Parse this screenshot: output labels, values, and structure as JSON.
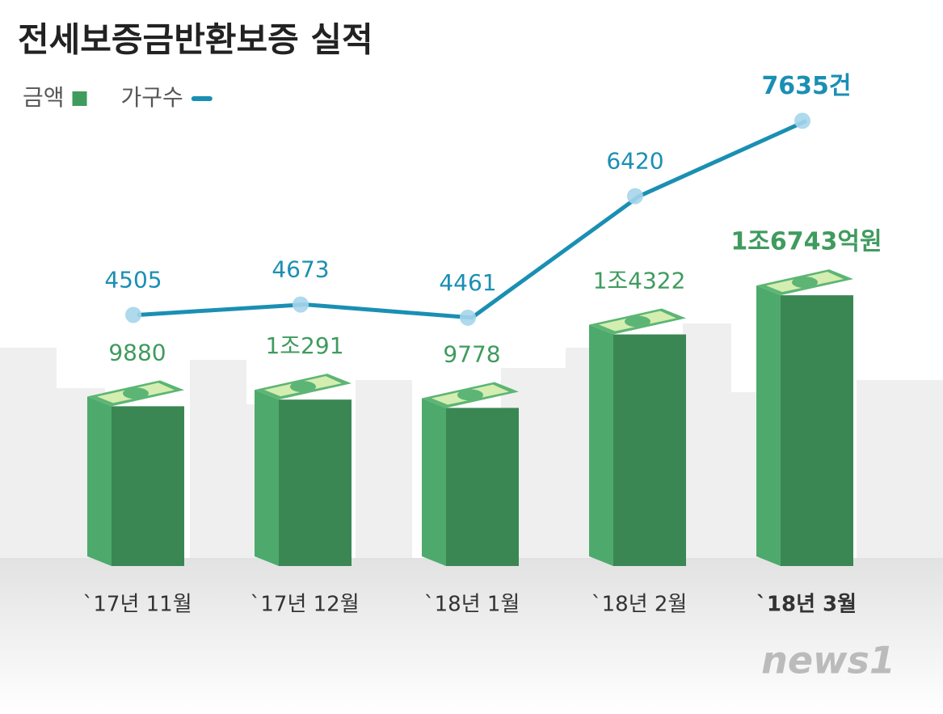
{
  "chart_data": {
    "type": "bar-line",
    "title": "전세보증금반환보증 실적",
    "categories": [
      "`17년 11월",
      "`17년 12월",
      "`18년 1월",
      "`18년 2월",
      "`18년 3월"
    ],
    "series": [
      {
        "name": "금액",
        "type": "bar",
        "color": "#3f9b5e",
        "values": [
          9880,
          10291,
          9778,
          14322,
          16743
        ],
        "value_labels": [
          "9880",
          "1조291",
          "9778",
          "1조4322",
          "1조6743억원"
        ]
      },
      {
        "name": "가구수",
        "type": "line",
        "color": "#1a8fb3",
        "values": [
          4505,
          4673,
          4461,
          6420,
          7635
        ],
        "value_labels": [
          "4505",
          "4673",
          "4461",
          "6420",
          "7635건"
        ]
      }
    ],
    "source_logo": "news1"
  }
}
